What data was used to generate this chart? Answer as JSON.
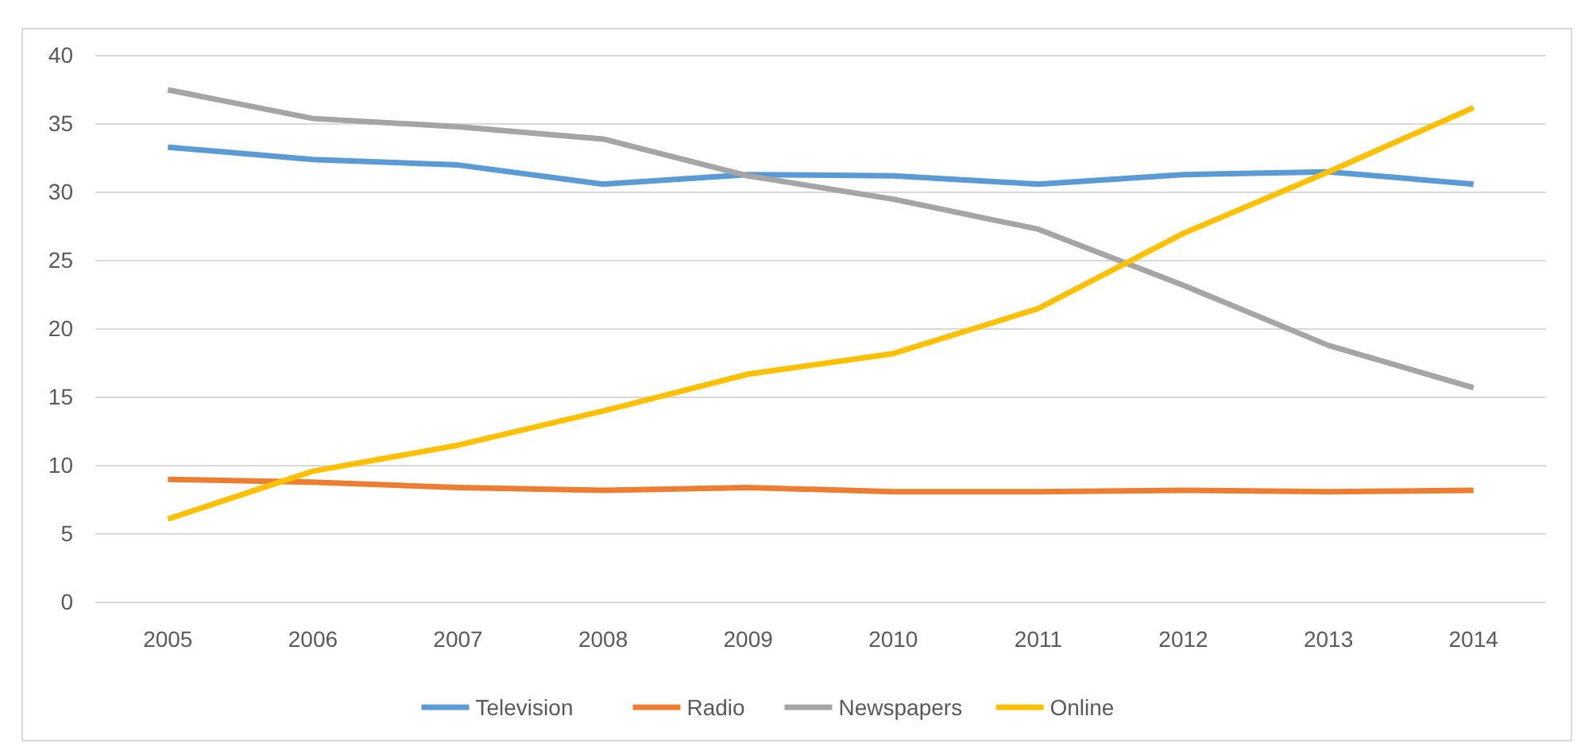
{
  "chart_data": {
    "type": "line",
    "categories": [
      "2005",
      "2006",
      "2007",
      "2008",
      "2009",
      "2010",
      "2011",
      "2012",
      "2013",
      "2014"
    ],
    "series": [
      {
        "name": "Television",
        "color": "#5b9bd5",
        "values": [
          33.3,
          32.4,
          32.0,
          30.6,
          31.3,
          31.2,
          30.6,
          31.3,
          31.5,
          30.6
        ]
      },
      {
        "name": "Radio",
        "color": "#ed7d31",
        "values": [
          9.0,
          8.8,
          8.4,
          8.2,
          8.4,
          8.1,
          8.1,
          8.2,
          8.1,
          8.2
        ]
      },
      {
        "name": "Newspapers",
        "color": "#a5a5a5",
        "values": [
          37.5,
          35.4,
          34.8,
          33.9,
          31.2,
          29.5,
          27.3,
          23.2,
          18.8,
          15.7
        ]
      },
      {
        "name": "Online",
        "color": "#ffc000",
        "values": [
          6.1,
          9.6,
          11.5,
          14.0,
          16.7,
          18.2,
          21.5,
          27.0,
          31.5,
          36.2
        ]
      }
    ],
    "ylim": [
      0,
      40
    ],
    "yticks": [
      0,
      5,
      10,
      15,
      20,
      25,
      30,
      35,
      40
    ],
    "grid": "y",
    "legend": "bottom",
    "marker": "none",
    "line_style": "solid"
  }
}
